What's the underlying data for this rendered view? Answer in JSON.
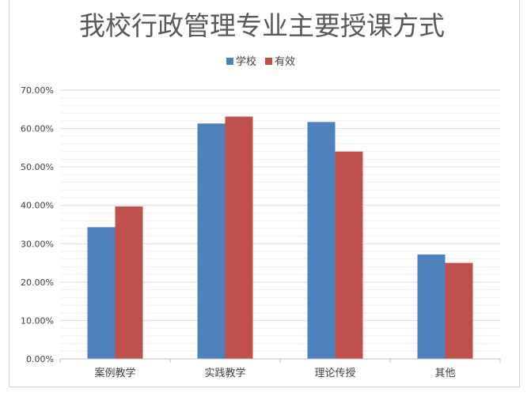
{
  "chart_data": {
    "type": "bar",
    "title": "我校行政管理专业主要授课方式",
    "categories": [
      "案例教学",
      "实践教学",
      "理论传授",
      "其他"
    ],
    "series": [
      {
        "name": "学校",
        "color": "#4f81bd",
        "values": [
          34.3,
          61.3,
          61.7,
          27.2
        ]
      },
      {
        "name": "有效",
        "color": "#c0504d",
        "values": [
          39.7,
          63.1,
          54.0,
          25.0
        ]
      }
    ],
    "ylim": [
      0,
      70
    ],
    "yticks": [
      "0.00%",
      "10.00%",
      "20.00%",
      "30.00%",
      "40.00%",
      "50.00%",
      "60.00%",
      "70.00%"
    ],
    "xlabel": "",
    "ylabel": "",
    "legend_position": "top-center",
    "grid": true
  }
}
